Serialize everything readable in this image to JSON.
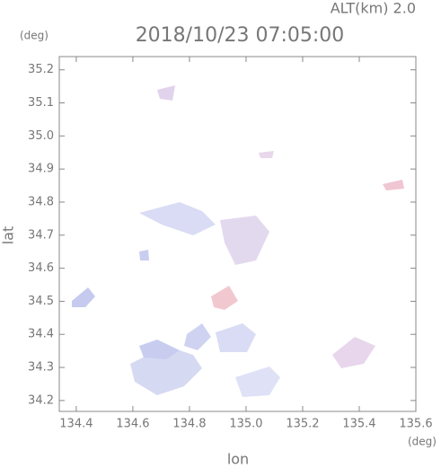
{
  "chart_data": {
    "type": "map",
    "title": "2018/10/23 07:05:00",
    "subtitle": "ALT(km) 2.0",
    "x_label": "lon",
    "y_label": "lat",
    "x_unit": "(deg)",
    "y_unit": "(deg)",
    "xlim": [
      134.34,
      135.6
    ],
    "ylim": [
      34.167,
      35.24
    ],
    "xticks": [
      {
        "value": 134.4,
        "label": "134.4"
      },
      {
        "value": 134.6,
        "label": "134.6"
      },
      {
        "value": 134.8,
        "label": "134.8"
      },
      {
        "value": 135.0,
        "label": "135.0"
      },
      {
        "value": 135.2,
        "label": "135.2"
      },
      {
        "value": 135.4,
        "label": "135.4"
      },
      {
        "value": 135.6,
        "label": "135.6"
      }
    ],
    "yticks": [
      {
        "value": 34.2,
        "label": "34.2"
      },
      {
        "value": 34.3,
        "label": "34.3"
      },
      {
        "value": 34.4,
        "label": "34.4"
      },
      {
        "value": 34.5,
        "label": "34.5"
      },
      {
        "value": 34.6,
        "label": "34.6"
      },
      {
        "value": 34.7,
        "label": "34.7"
      },
      {
        "value": 34.8,
        "label": "34.8"
      },
      {
        "value": 34.9,
        "label": "34.9"
      },
      {
        "value": 35.0,
        "label": "35.0"
      },
      {
        "value": 35.1,
        "label": "35.1"
      },
      {
        "value": 35.2,
        "label": "35.2"
      }
    ]
  }
}
